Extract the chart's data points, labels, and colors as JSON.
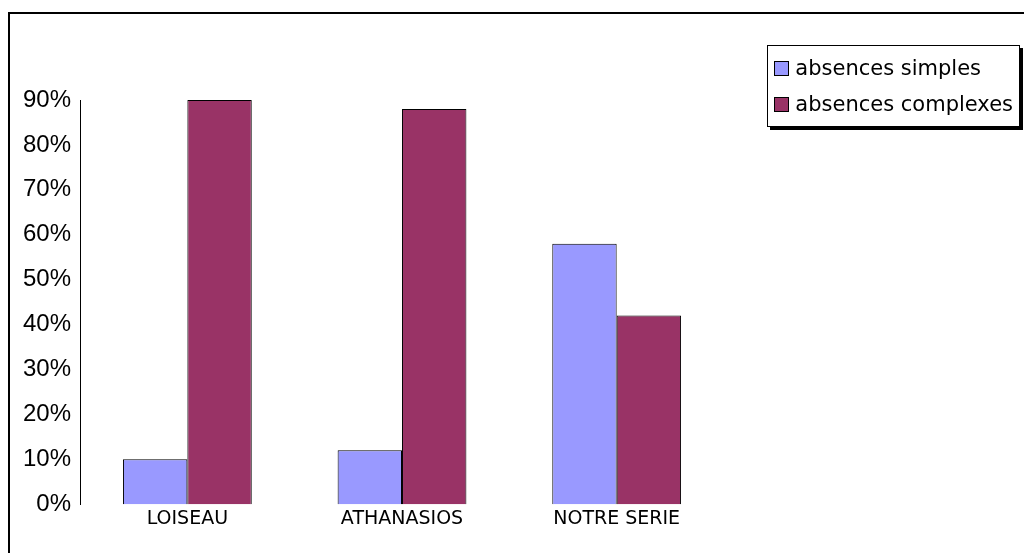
{
  "chart_data": {
    "type": "bar",
    "categories": [
      "LOISEAU",
      "ATHANASIOS",
      "NOTRE SERIE"
    ],
    "series": [
      {
        "name": "absences simples",
        "color": "#9999ff",
        "values": [
          10,
          12,
          58
        ]
      },
      {
        "name": "absences complexes",
        "color": "#993366",
        "values": [
          90,
          88,
          42
        ]
      }
    ],
    "ylim": [
      0,
      90
    ],
    "yticks": [
      {
        "value": 0,
        "label": "0%"
      },
      {
        "value": 10,
        "label": "10%"
      },
      {
        "value": 20,
        "label": "20%"
      },
      {
        "value": 30,
        "label": "30%"
      },
      {
        "value": 40,
        "label": "40%"
      },
      {
        "value": 50,
        "label": "50%"
      },
      {
        "value": 60,
        "label": "60%"
      },
      {
        "value": 70,
        "label": "70%"
      },
      {
        "value": 80,
        "label": "80%"
      },
      {
        "value": 90,
        "label": "90%"
      }
    ],
    "grid": false,
    "legend": "top right"
  }
}
